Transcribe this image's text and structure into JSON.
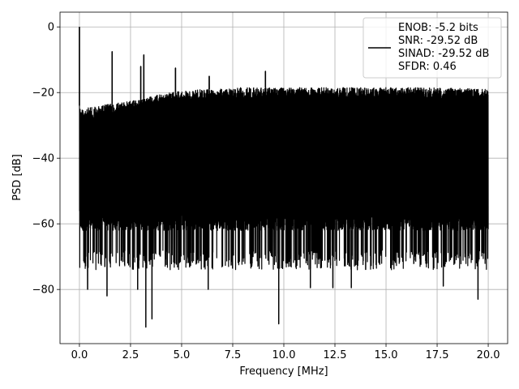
{
  "chart_data": {
    "type": "line",
    "title": "",
    "xlabel": "Frequency [MHz]",
    "ylabel": "PSD [dB]",
    "xlim": [
      -0.95,
      20.95
    ],
    "ylim": [
      -96.5,
      4.5
    ],
    "xticks": [
      0.0,
      2.5,
      5.0,
      7.5,
      10.0,
      12.5,
      15.0,
      17.5,
      20.0
    ],
    "xtick_labels": [
      "0.0",
      "2.5",
      "5.0",
      "7.5",
      "10.0",
      "12.5",
      "15.0",
      "17.5",
      "20.0"
    ],
    "yticks": [
      0,
      -20,
      -40,
      -60,
      -80
    ],
    "ytick_labels": [
      "0",
      "−20",
      "−40",
      "−60",
      "−80"
    ],
    "grid": true,
    "legend_position": "top-right",
    "series": [
      {
        "color": "#000000",
        "x_range": [
          0,
          20
        ],
        "envelope": {
          "upper_x": [
            0,
            0.1,
            1.0,
            2.0,
            3.0,
            4.0,
            5.0,
            7.5,
            10.0,
            12.5,
            15.0,
            17.5,
            20.0
          ],
          "upper_y": [
            -24,
            -25,
            -24,
            -23,
            -22,
            -20.5,
            -19.5,
            -18.5,
            -18.5,
            -18.5,
            -18.5,
            -18.5,
            -19
          ],
          "lower_typical": -62,
          "lower_extreme": -68
        },
        "spikes": [
          {
            "x": 0.0,
            "y": 0.0
          },
          {
            "x": 1.6,
            "y": -7.5
          },
          {
            "x": 3.15,
            "y": -8.5
          },
          {
            "x": 3.0,
            "y": -12.0
          },
          {
            "x": 4.7,
            "y": -12.5
          },
          {
            "x": 9.1,
            "y": -13.5
          },
          {
            "x": 6.35,
            "y": -15.0
          }
        ],
        "dips": [
          {
            "x": 0.4,
            "y": -80.0
          },
          {
            "x": 1.35,
            "y": -82.0
          },
          {
            "x": 2.85,
            "y": -80.0
          },
          {
            "x": 3.25,
            "y": -91.5
          },
          {
            "x": 3.55,
            "y": -89.0
          },
          {
            "x": 6.3,
            "y": -80.0
          },
          {
            "x": 9.75,
            "y": -90.5
          },
          {
            "x": 11.3,
            "y": -79.5
          },
          {
            "x": 12.4,
            "y": -79.5
          },
          {
            "x": 13.3,
            "y": -79.5
          },
          {
            "x": 17.8,
            "y": -79.0
          },
          {
            "x": 19.5,
            "y": -83.0
          }
        ]
      }
    ],
    "legend_entries": [
      "ENOB: -5.2 bits",
      "SNR: -29.52 dB",
      "SINAD: -29.52 dB",
      "SFDR: 0.46"
    ]
  }
}
